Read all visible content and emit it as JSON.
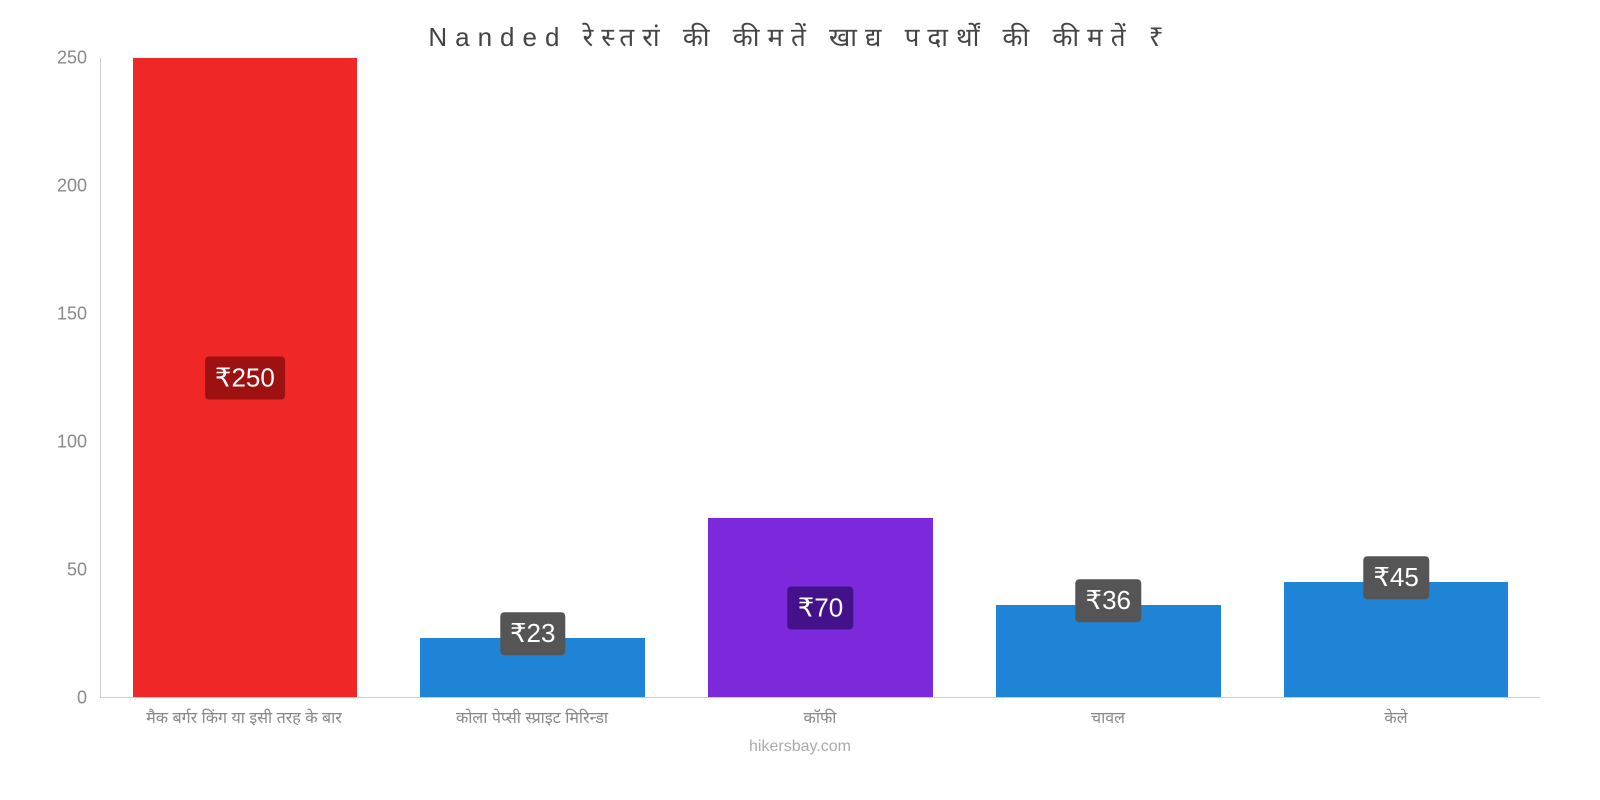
{
  "chart": {
    "type": "bar",
    "title": "Nanded रेस्तरां की कीमतें खाद्य पदार्थों की कीमतें ₹",
    "title_fontsize": 26,
    "title_color": "#444444",
    "credit": "hikersbay.com",
    "credit_color": "#aaaaaa",
    "ylim": [
      0,
      250
    ],
    "ytick_step": 50,
    "yticks": [
      0,
      50,
      100,
      150,
      200,
      250
    ],
    "axis_color": "#cccccc",
    "tick_label_color": "#888888",
    "tick_fontsize": 18,
    "xlabel_fontsize": 16,
    "bar_width_pct": 78,
    "label_fontsize": 26,
    "label_text_color": "#ffffff",
    "background_color": "#ffffff",
    "categories": [
      "मैक बर्गर किंग या इसी तरह के बार",
      "कोला पेप्सी स्प्राइट मिरिन्डा",
      "कॉफी",
      "चावल",
      "केले"
    ],
    "values": [
      250,
      23,
      70,
      36,
      45
    ],
    "value_labels": [
      "₹250",
      "₹23",
      "₹70",
      "₹36",
      "₹45"
    ],
    "bar_colors": [
      "#ef2727",
      "#1f84d6",
      "#7b29db",
      "#1f84d6",
      "#1f84d6"
    ],
    "label_bg_colors": [
      "#9e1111",
      "#555555",
      "#43128a",
      "#555555",
      "#555555"
    ],
    "label_offset_mode": [
      "center",
      "above",
      "center",
      "above",
      "above"
    ]
  }
}
